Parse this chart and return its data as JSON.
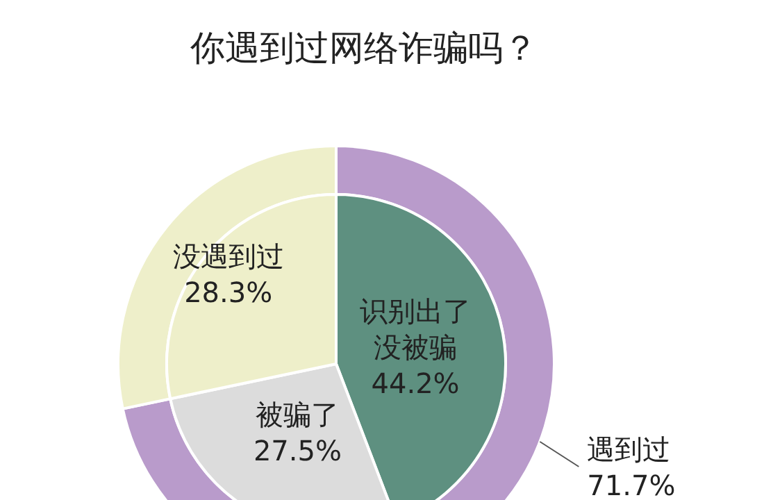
{
  "chart_data": [
    {
      "type": "donut",
      "title": "你遇到过网络诈骗吗？",
      "categories": [
        "遇到过",
        "没遇到过"
      ],
      "values": [
        71.7,
        28.3
      ],
      "colors": [
        "#b99bcb",
        "#eeefca"
      ],
      "value_labels": [
        "71.7%",
        "28.3%"
      ]
    },
    {
      "type": "pie",
      "categories": [
        "识别出了没被骗",
        "被骗了",
        null
      ],
      "values": [
        44.2,
        27.5,
        28.3
      ],
      "colors": [
        "#5e9080",
        "#dcdcdc",
        "#eeefca"
      ],
      "value_labels": [
        "44.2%",
        "27.5%",
        null
      ]
    }
  ]
}
